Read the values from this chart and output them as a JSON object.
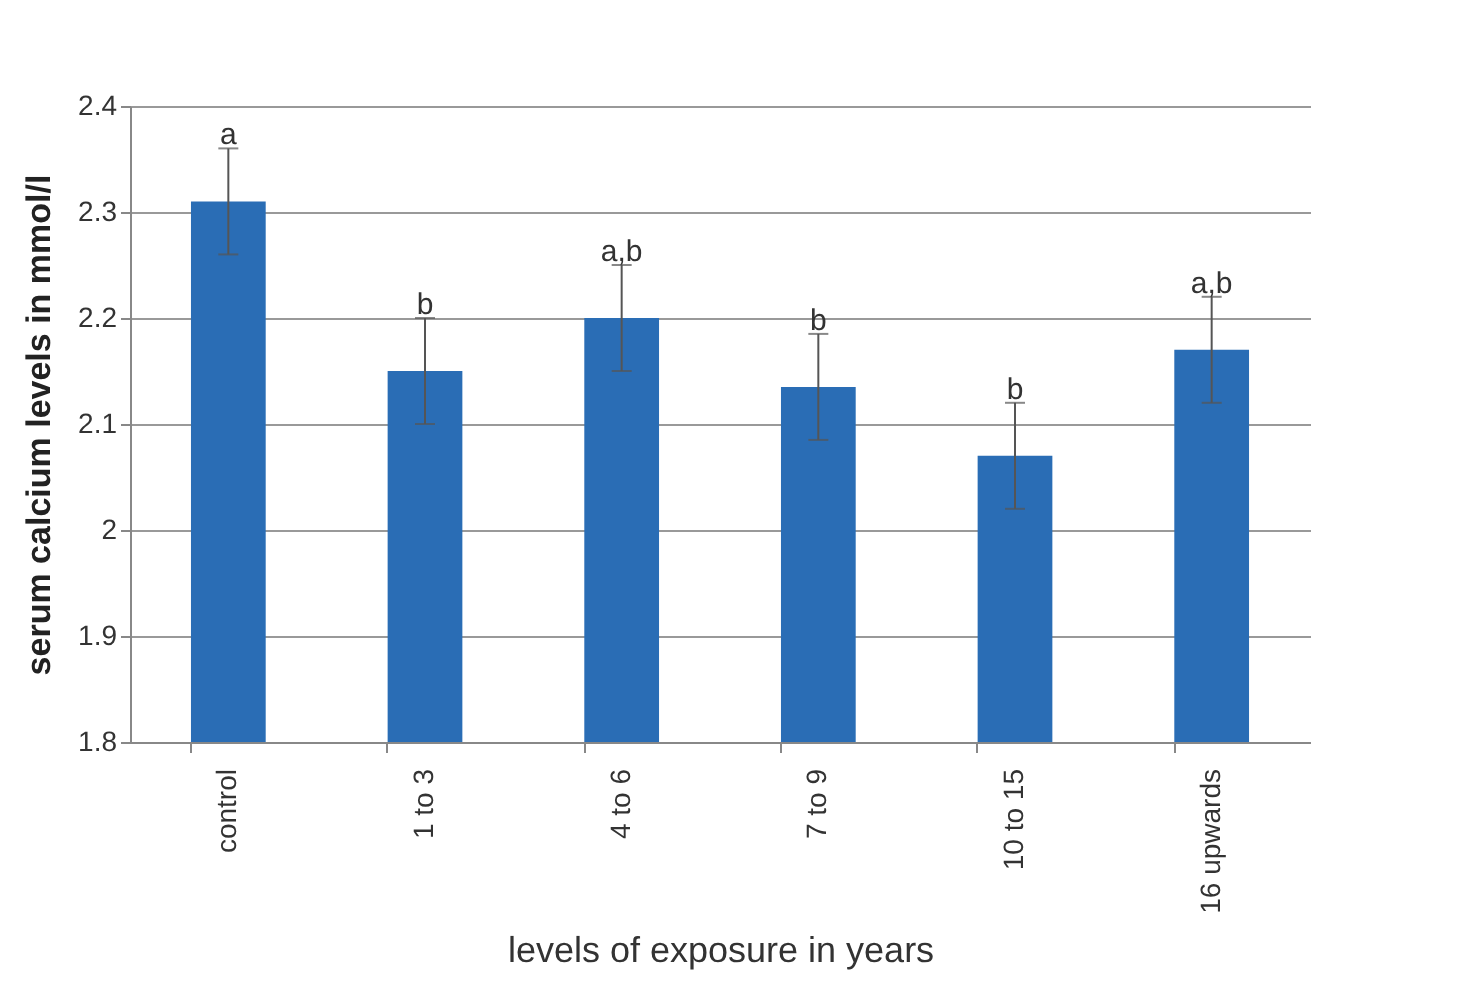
{
  "chart_data": {
    "type": "bar",
    "xlabel": "levels of exposure in years",
    "ylabel": "serum calcium levels in mmol/l",
    "categories": [
      "control",
      "1 to 3",
      "4 to 6",
      "7 to 9",
      "10 to 15",
      "16 upwards"
    ],
    "values": [
      2.31,
      2.15,
      2.2,
      2.135,
      2.07,
      2.17
    ],
    "errors": [
      0.05,
      0.05,
      0.05,
      0.05,
      0.05,
      0.05
    ],
    "color": "#2a6db5",
    "ylim": [
      1.8,
      2.4
    ],
    "yticks": [
      1.8,
      1.9,
      {
        "value": 2,
        "label": "2"
      },
      2.1,
      2.2,
      2.3,
      2.4
    ],
    "grid": "y",
    "annotations": [
      {
        "text": "a",
        "x": "control",
        "y": 2.36
      },
      {
        "text": "b",
        "x": "1 to 3",
        "y": 2.2
      },
      {
        "text": "a,b",
        "x": "4 to 6",
        "y": 2.25
      },
      {
        "text": "b",
        "x": "7 to 9",
        "y": 2.185
      },
      {
        "text": "b",
        "x": "10 to 15",
        "y": 2.12
      },
      {
        "text": "a,b",
        "x": "16 upwards",
        "y": 2.22
      }
    ]
  }
}
